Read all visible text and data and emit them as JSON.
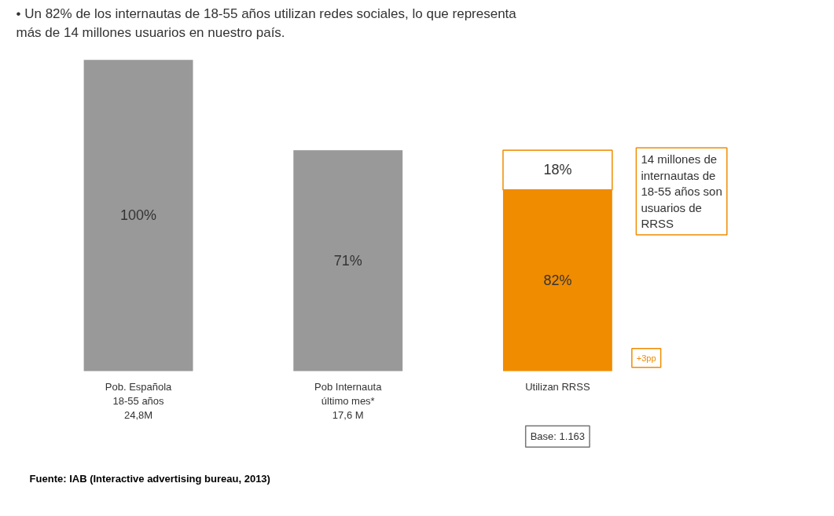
{
  "chart_data": {
    "type": "bar",
    "stacked": true,
    "title": "• Un 82% de los internautas de 18-55 años utilizan redes sociales, lo que representa más de 14 millones usuarios en nuestro país.",
    "categories": [
      "Pob. Española\n18-55 años\n24,8M",
      "Pob Internauta\núltimo mes*\n17,6 M",
      "Utilizan RRSS"
    ],
    "tick_labels": false,
    "series": [
      {
        "color": "#999999",
        "values": [
          100,
          71,
          null
        ],
        "value_labels": [
          "100%",
          "71%",
          null
        ]
      },
      {
        "color": "#f08c00",
        "axis": "y2",
        "values": [
          null,
          null,
          82
        ],
        "value_labels": [
          null,
          null,
          "82%"
        ]
      },
      {
        "color": "#ffffff",
        "axis": "y2",
        "values": [
          null,
          null,
          18
        ],
        "value_labels": [
          null,
          null,
          "18%"
        ]
      }
    ],
    "annotations": [
      "Base: 1.163",
      "14 millones de\ninternautas de\n18-55 años son\nusuarios de\nRRSS",
      "+3pp",
      "Fuente: IAB (Interactive advertising bureau, 2013)"
    ]
  }
}
